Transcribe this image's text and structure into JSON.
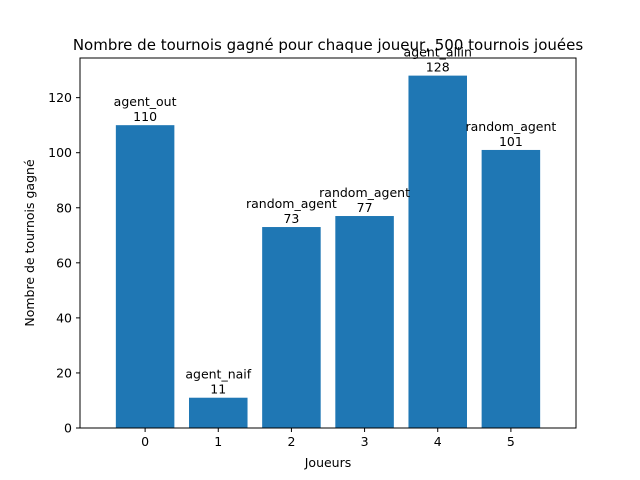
{
  "chart_data": {
    "type": "bar",
    "title": "Nombre de tournois gagné pour chaque joueur, 500 tournois jouées",
    "xlabel": "Joueurs",
    "ylabel": "Nombre de tournois gagné",
    "categories": [
      "0",
      "1",
      "2",
      "3",
      "4",
      "5"
    ],
    "values": [
      110,
      11,
      73,
      77,
      128,
      101
    ],
    "bar_labels": [
      "agent_out",
      "agent_naif",
      "random_agent",
      "random_agent",
      "agent_allin",
      "random_agent"
    ],
    "value_labels": [
      "110",
      "11",
      "73",
      "77",
      "128",
      "101"
    ],
    "ylim": [
      0,
      134.4
    ],
    "yticks": [
      0,
      20,
      40,
      60,
      80,
      100,
      120
    ],
    "xlim": [
      -0.89,
      5.89
    ],
    "grid": false,
    "bar_color": "#1f77b4"
  }
}
